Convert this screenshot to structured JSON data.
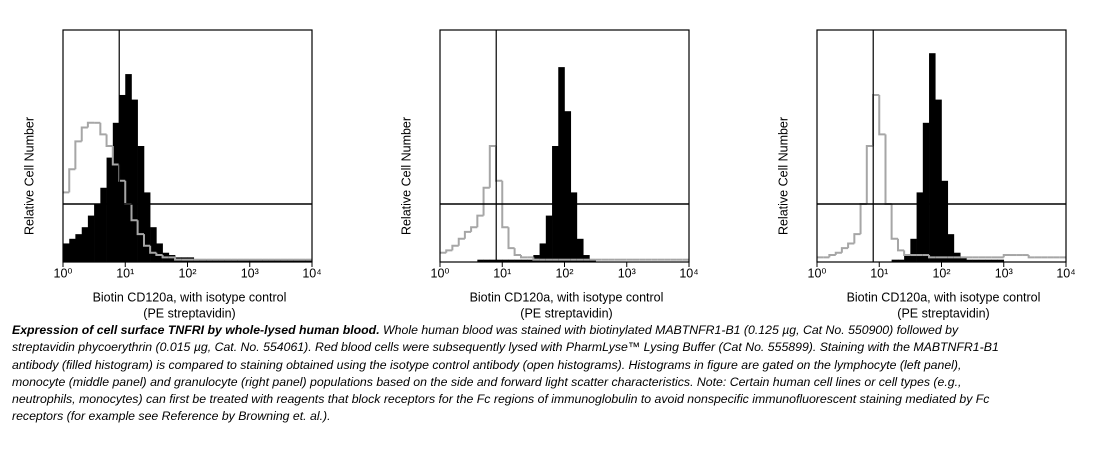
{
  "chart_data": [
    {
      "type": "histogram",
      "ylabel": "Relative Cell Number",
      "xlabel": [
        "Biotin CD120a, with isotype control",
        "(PE streptavidin)"
      ],
      "xscale": "log",
      "xlim": [
        1,
        10000
      ],
      "ylim": [
        0,
        100
      ],
      "xticks": [
        {
          "value": 1,
          "label": "10⁰"
        },
        {
          "value": 10,
          "label": "10¹"
        },
        {
          "value": 100,
          "label": "10²"
        },
        {
          "value": 1000,
          "label": "10³"
        },
        {
          "value": 10000,
          "label": "10⁴"
        }
      ],
      "vline": 8,
      "hline": 25,
      "bins": [
        1,
        1.26,
        1.58,
        2,
        2.51,
        3.16,
        3.98,
        5.01,
        6.31,
        7.94,
        10,
        12.6,
        15.8,
        20,
        25.1,
        31.6,
        39.8,
        50.1,
        63.1,
        79.4,
        100,
        126,
        158,
        200,
        251,
        316,
        398,
        501,
        631,
        794,
        1000,
        1259,
        1585,
        1995,
        2512,
        3162,
        3981,
        5012,
        6310,
        7943,
        10000
      ],
      "series": [
        {
          "color": "#000000",
          "fill": true,
          "values": [
            8,
            10,
            12,
            15,
            20,
            25,
            32,
            45,
            60,
            72,
            81,
            70,
            50,
            30,
            15,
            8,
            4,
            3,
            2,
            2,
            2,
            1,
            1,
            1,
            1,
            1,
            1,
            1,
            1,
            1,
            1,
            1,
            1,
            1,
            1,
            1,
            1,
            1,
            1,
            1
          ]
        },
        {
          "color": "#a6a6a6",
          "fill": false,
          "values": [
            30,
            40,
            52,
            58,
            60,
            60,
            55,
            50,
            42,
            35,
            25,
            18,
            12,
            7,
            4,
            3,
            2,
            2,
            1,
            1,
            1,
            1,
            1,
            1,
            1,
            1,
            1,
            1,
            1,
            1,
            1,
            1,
            1,
            1,
            1,
            1,
            1,
            1,
            1,
            1
          ]
        }
      ]
    },
    {
      "type": "histogram",
      "ylabel": "Relative Cell Number",
      "xlabel": [
        "Biotin CD120a, with isotype control",
        "(PE streptavidin)"
      ],
      "xscale": "log",
      "xlim": [
        1,
        10000
      ],
      "ylim": [
        0,
        100
      ],
      "xticks": [
        {
          "value": 1,
          "label": "10⁰"
        },
        {
          "value": 10,
          "label": "10¹"
        },
        {
          "value": 100,
          "label": "10²"
        },
        {
          "value": 1000,
          "label": "10³"
        },
        {
          "value": 10000,
          "label": "10⁴"
        }
      ],
      "vline": 8,
      "hline": 25,
      "bins": [
        1,
        1.26,
        1.58,
        2,
        2.51,
        3.16,
        3.98,
        5.01,
        6.31,
        7.94,
        10,
        12.6,
        15.8,
        20,
        25.1,
        31.6,
        39.8,
        50.1,
        63.1,
        79.4,
        100,
        126,
        158,
        200,
        251,
        316,
        398,
        501,
        631,
        794,
        1000,
        1259,
        1585,
        1995,
        2512,
        3162,
        3981,
        5012,
        6310,
        7943,
        10000
      ],
      "series": [
        {
          "color": "#000000",
          "fill": true,
          "values": [
            0,
            0,
            0,
            0,
            0,
            0,
            1,
            1,
            1,
            1,
            1,
            1,
            1,
            1,
            1,
            3,
            8,
            20,
            50,
            84,
            65,
            30,
            10,
            3,
            1,
            0,
            0,
            0,
            0,
            0,
            0,
            0,
            0,
            0,
            0,
            0,
            0,
            0,
            0,
            0
          ]
        },
        {
          "color": "#a6a6a6",
          "fill": false,
          "values": [
            4,
            5,
            7,
            10,
            13,
            15,
            20,
            32,
            50,
            35,
            15,
            6,
            3,
            2,
            2,
            1,
            1,
            1,
            1,
            1,
            1,
            1,
            1,
            1,
            1,
            1,
            1,
            1,
            1,
            1,
            1,
            1,
            1,
            1,
            1,
            1,
            1,
            1,
            1,
            1
          ]
        }
      ]
    },
    {
      "type": "histogram",
      "ylabel": "Relative Cell Number",
      "xlabel": [
        "Biotin CD120a, with isotype control",
        "(PE streptavidin)"
      ],
      "xscale": "log",
      "xlim": [
        1,
        10000
      ],
      "ylim": [
        0,
        100
      ],
      "xticks": [
        {
          "value": 1,
          "label": "10⁰"
        },
        {
          "value": 10,
          "label": "10¹"
        },
        {
          "value": 100,
          "label": "10²"
        },
        {
          "value": 1000,
          "label": "10³"
        },
        {
          "value": 10000,
          "label": "10⁴"
        }
      ],
      "vline": 8,
      "hline": 25,
      "bins": [
        1,
        1.26,
        1.58,
        2,
        2.51,
        3.16,
        3.98,
        5.01,
        6.31,
        7.94,
        10,
        12.6,
        15.8,
        20,
        25.1,
        31.6,
        39.8,
        50.1,
        63.1,
        79.4,
        100,
        126,
        158,
        200,
        251,
        316,
        398,
        501,
        631,
        794,
        1000,
        1259,
        1585,
        1995,
        2512,
        3162,
        3981,
        5012,
        6310,
        7943,
        10000
      ],
      "series": [
        {
          "color": "#000000",
          "fill": true,
          "values": [
            0,
            0,
            0,
            0,
            0,
            0,
            0,
            0,
            0,
            0,
            0,
            0,
            1,
            1,
            3,
            10,
            30,
            60,
            90,
            70,
            35,
            12,
            4,
            2,
            1,
            1,
            1,
            1,
            1,
            1,
            0,
            0,
            0,
            0,
            0,
            0,
            0,
            0,
            0,
            0
          ]
        },
        {
          "color": "#a6a6a6",
          "fill": false,
          "values": [
            2,
            2,
            3,
            4,
            6,
            8,
            12,
            25,
            50,
            72,
            55,
            25,
            10,
            5,
            3,
            3,
            3,
            3,
            2,
            2,
            2,
            2,
            2,
            2,
            2,
            2,
            2,
            2,
            2,
            2,
            3,
            3,
            3,
            3,
            2,
            2,
            2,
            2,
            2,
            2
          ]
        }
      ]
    }
  ],
  "caption": {
    "title": "Expression of cell surface TNFRI by whole-lysed human blood.",
    "text": "Whole human blood was stained with biotinylated MABTNFR1-B1 (0.125 µg, Cat No. 550900) followed by streptavidin phycoerythrin (0.015 µg, Cat. No. 554061). Red blood cells were subsequently lysed with PharmLyse™ Lysing Buffer (Cat No. 555899). Staining with the MABTNFR1-B1 antibody (filled histogram) is compared to staining obtained using the isotype control antibody (open histograms). Histograms in figure are gated on the lymphocyte (left panel), monocyte (middle panel) and granulocyte (right panel) populations based on the side and forward light scatter characteristics. Note: Certain human cell lines or cell types (e.g., neutrophils, monocytes) can first be treated with reagents that block receptors for the Fc regions of immunoglobulin to avoid nonspecific immunofluorescent staining mediated by Fc receptors (for example see Reference by Browning et. al.)."
  }
}
